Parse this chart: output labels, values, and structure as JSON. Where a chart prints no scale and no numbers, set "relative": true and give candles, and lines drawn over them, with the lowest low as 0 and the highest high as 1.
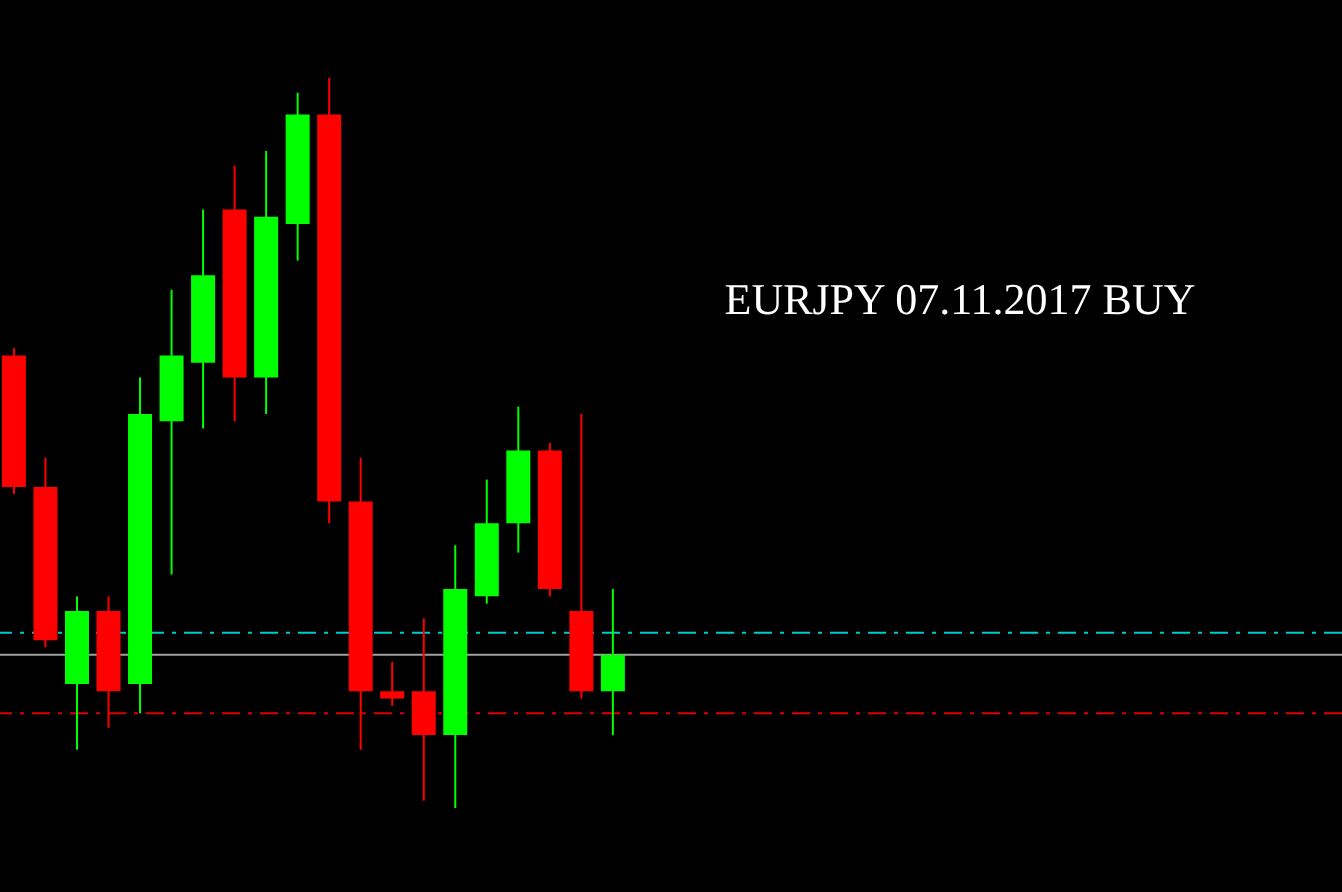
{
  "chart_data": {
    "type": "candlestick",
    "title": "EURJPY 07.11.2017 BUY",
    "relative": true,
    "categories": [
      null,
      null,
      null,
      null,
      null,
      null,
      null,
      null,
      null,
      null,
      null,
      null,
      null,
      null,
      null,
      null,
      null,
      null,
      null,
      null
    ],
    "ohlc": [
      [
        0.62,
        0.63,
        0.43,
        0.44
      ],
      [
        0.44,
        0.48,
        0.22,
        0.23
      ],
      [
        0.17,
        0.29,
        0.08,
        0.27
      ],
      [
        0.27,
        0.29,
        0.11,
        0.16
      ],
      [
        0.17,
        0.59,
        0.13,
        0.54
      ],
      [
        0.53,
        0.71,
        0.32,
        0.62
      ],
      [
        0.61,
        0.82,
        0.52,
        0.73
      ],
      [
        0.82,
        0.88,
        0.53,
        0.59
      ],
      [
        0.59,
        0.9,
        0.54,
        0.81
      ],
      [
        0.8,
        0.98,
        0.75,
        0.95
      ],
      [
        0.95,
        1,
        0.39,
        0.42
      ],
      [
        0.42,
        0.48,
        0.08,
        0.16
      ],
      [
        0.16,
        0.2,
        0.14,
        0.15
      ],
      [
        0.16,
        0.26,
        0.01,
        0.1
      ],
      [
        0.1,
        0.36,
        0,
        0.3
      ],
      [
        0.29,
        0.45,
        0.28,
        0.39
      ],
      [
        0.39,
        0.55,
        0.35,
        0.49
      ],
      [
        0.49,
        0.5,
        0.29,
        0.3
      ],
      [
        0.27,
        0.54,
        0.15,
        0.16
      ],
      [
        0.16,
        0.3,
        0.1,
        0.21
      ]
    ],
    "colors": [
      "#ff0000",
      "#ff0000",
      "#00ff00",
      "#ff0000",
      "#00ff00",
      "#00ff00",
      "#00ff00",
      "#ff0000",
      "#00ff00",
      "#00ff00",
      "#ff0000",
      "#ff0000",
      "#ff0000",
      "#ff0000",
      "#00ff00",
      "#00ff00",
      "#00ff00",
      "#ff0000",
      "#ff0000",
      "#00ff00"
    ],
    "ref_lines": [
      {
        "axis": "y",
        "value": 0.24,
        "color": "#00cccc",
        "line_style": "dashed"
      },
      {
        "axis": "y",
        "value": 0.21,
        "color": "#a0a0a0",
        "line_style": "solid"
      },
      {
        "axis": "y",
        "value": 0.13,
        "color": "#dd0000",
        "line_style": "dashed"
      }
    ]
  }
}
